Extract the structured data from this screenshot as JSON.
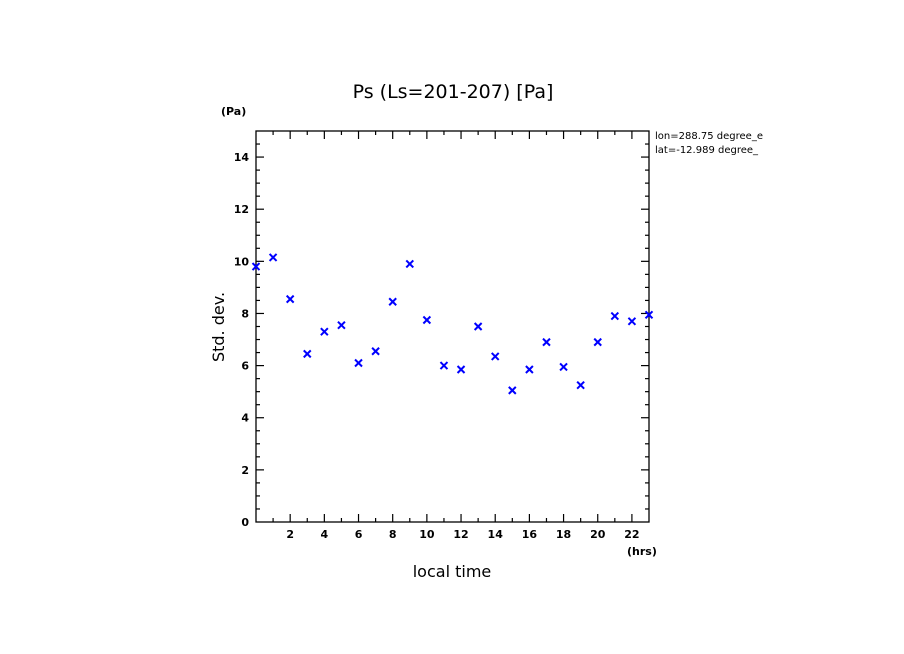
{
  "chart_data": {
    "type": "scatter",
    "title": "Ps (Ls=201-207) [Pa]",
    "xlabel": "local time",
    "ylabel": "Std. dev.",
    "x_unit": "(hrs)",
    "y_unit": "(Pa)",
    "annotations": [
      "lon=288.75 degree_e",
      "lat=-12.989 degree_"
    ],
    "xlim": [
      0,
      23
    ],
    "ylim": [
      0,
      15
    ],
    "xticks": [
      2,
      4,
      6,
      8,
      10,
      12,
      14,
      16,
      18,
      20,
      22
    ],
    "yticks": [
      0,
      2,
      4,
      6,
      8,
      10,
      12,
      14
    ],
    "xtick_labels": [
      "2",
      "4",
      "6",
      "8",
      "10",
      "12",
      "14",
      "16",
      "18",
      "20",
      "22"
    ],
    "ytick_labels": [
      "0",
      "2",
      "4",
      "6",
      "8",
      "10",
      "12",
      "14"
    ],
    "marker": "x",
    "marker_color": "#0000ff",
    "grid": false,
    "series": [
      {
        "x": [
          0,
          1,
          2,
          3,
          4,
          5,
          6,
          7,
          8,
          9,
          10,
          11,
          12,
          13,
          14,
          15,
          16,
          17,
          18,
          19,
          20,
          21,
          22,
          23
        ],
        "values": [
          9.8,
          10.15,
          8.55,
          6.45,
          7.3,
          7.55,
          6.1,
          6.55,
          8.45,
          9.9,
          7.75,
          6.0,
          5.85,
          7.5,
          6.35,
          5.05,
          5.85,
          6.9,
          5.95,
          5.25,
          6.9,
          7.9,
          7.7,
          7.95
        ]
      }
    ]
  }
}
